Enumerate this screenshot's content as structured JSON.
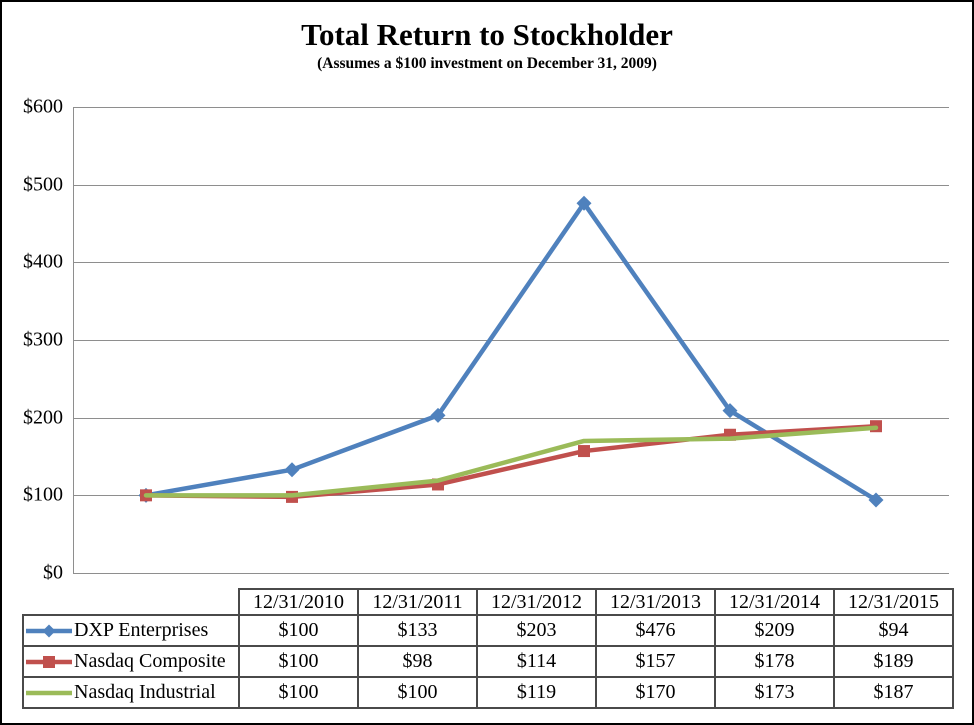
{
  "title": "Total Return to Stockholder",
  "subtitle": "(Assumes a $100 investment on December 31, 2009)",
  "colors": {
    "dxp_blue": "#4F81BD",
    "nasdaq_composite_red": "#C0504D",
    "nasdaq_industrial_green": "#9BBB59",
    "gridline_gray": "#8e8e8e",
    "table_border_gray": "#4a4a4a",
    "text_black": "#000000"
  },
  "chart_data": {
    "type": "line",
    "title": "Total Return to Stockholder",
    "subtitle": "(Assumes a $100 investment on December 31, 2009)",
    "categories": [
      "12/31/2010",
      "12/31/2011",
      "12/31/2012",
      "12/31/2013",
      "12/31/2014",
      "12/31/2015"
    ],
    "series": [
      {
        "name": "DXP Enterprises",
        "values": [
          100,
          133,
          203,
          476,
          209,
          94
        ],
        "color": "#4F81BD",
        "marker": "diamond"
      },
      {
        "name": "Nasdaq Composite",
        "values": [
          100,
          98,
          114,
          157,
          178,
          189
        ],
        "color": "#C0504D",
        "marker": "square"
      },
      {
        "name": "Nasdaq Industrial",
        "values": [
          100,
          100,
          119,
          170,
          173,
          187
        ],
        "color": "#9BBB59",
        "marker": "none"
      }
    ],
    "ylim": [
      0,
      600
    ],
    "y_step": 100,
    "y_ticks": [
      "$600",
      "$500",
      "$400",
      "$300",
      "$200",
      "$100",
      "$0"
    ],
    "grid": "horizontal-only",
    "legend_position": "table-left-column",
    "xlabel": "",
    "ylabel": ""
  },
  "table": {
    "header": [
      "",
      "12/31/2010",
      "12/31/2011",
      "12/31/2012",
      "12/31/2013",
      "12/31/2014",
      "12/31/2015"
    ],
    "rows": [
      {
        "name": "DXP Enterprises",
        "values": [
          "$100",
          "$133",
          "$203",
          "$476",
          "$209",
          "$94"
        ]
      },
      {
        "name": "Nasdaq Composite",
        "values": [
          "$100",
          "$98",
          "$114",
          "$157",
          "$178",
          "$189"
        ]
      },
      {
        "name": "Nasdaq Industrial",
        "values": [
          "$100",
          "$100",
          "$119",
          "$170",
          "$173",
          "$187"
        ]
      }
    ]
  }
}
